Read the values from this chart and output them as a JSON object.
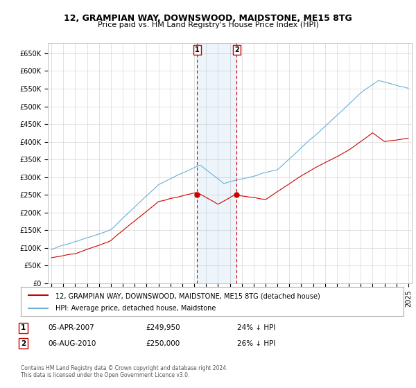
{
  "title": "12, GRAMPIAN WAY, DOWNSWOOD, MAIDSTONE, ME15 8TG",
  "subtitle": "Price paid vs. HM Land Registry's House Price Index (HPI)",
  "ylabel_ticks": [
    "£0",
    "£50K",
    "£100K",
    "£150K",
    "£200K",
    "£250K",
    "£300K",
    "£350K",
    "£400K",
    "£450K",
    "£500K",
    "£550K",
    "£600K",
    "£650K"
  ],
  "ytick_values": [
    0,
    50000,
    100000,
    150000,
    200000,
    250000,
    300000,
    350000,
    400000,
    450000,
    500000,
    550000,
    600000,
    650000
  ],
  "ylim": [
    0,
    680000
  ],
  "xlim_start": 1994.7,
  "xlim_end": 2025.3,
  "hpi_color": "#6baed6",
  "price_color": "#cc0000",
  "sale1_x": 2007.25,
  "sale1_y": 249950,
  "sale2_x": 2010.58,
  "sale2_y": 250000,
  "legend_line1": "12, GRAMPIAN WAY, DOWNSWOOD, MAIDSTONE, ME15 8TG (detached house)",
  "legend_line2": "HPI: Average price, detached house, Maidstone",
  "annotation1_date": "05-APR-2007",
  "annotation1_price": "£249,950",
  "annotation1_hpi": "24% ↓ HPI",
  "annotation2_date": "06-AUG-2010",
  "annotation2_price": "£250,000",
  "annotation2_hpi": "26% ↓ HPI",
  "footer": "Contains HM Land Registry data © Crown copyright and database right 2024.\nThis data is licensed under the Open Government Licence v3.0.",
  "background_color": "#ffffff",
  "grid_color": "#cccccc"
}
